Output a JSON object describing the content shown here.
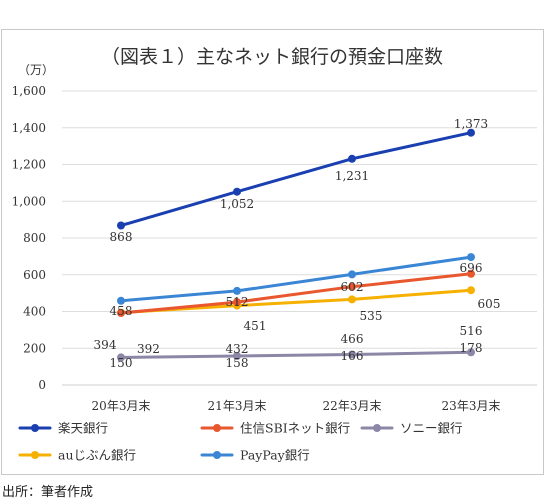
{
  "source": "出所：筆者作成",
  "chart_data": {
    "type": "line",
    "title": "（図表１）主なネット銀行の預金口座数",
    "unit": "（万）",
    "categories": [
      "20年3月末",
      "21年3月末",
      "22年3月末",
      "23年3月末"
    ],
    "ylim": [
      0,
      1600
    ],
    "yticks": [
      "0",
      "200",
      "400",
      "600",
      "800",
      "1,000",
      "1,200",
      "1,400",
      "1,600"
    ],
    "grid": true,
    "legend_position": "bottom",
    "series": [
      {
        "name": "楽天銀行",
        "color": "#1a3fb0",
        "values": [
          868,
          1052,
          1231,
          1373
        ],
        "labels": [
          "868",
          "1,052",
          "1,231",
          "1,373"
        ]
      },
      {
        "name": "住信SBIネット銀行",
        "color": "#e8572e",
        "values": [
          392,
          451,
          535,
          605
        ],
        "labels": [
          "392",
          "451",
          "535",
          "605"
        ]
      },
      {
        "name": "ソニー銀行",
        "color": "#8c87a6",
        "values": [
          150,
          158,
          166,
          178
        ],
        "labels": [
          "150",
          "158",
          "166",
          "178"
        ]
      },
      {
        "name": "auじぶん銀行",
        "color": "#f6b000",
        "values": [
          394,
          432,
          466,
          516
        ],
        "labels": [
          "394",
          "432",
          "466",
          "516"
        ]
      },
      {
        "name": "PayPay銀行",
        "color": "#3a86d4",
        "values": [
          458,
          512,
          602,
          696
        ],
        "labels": [
          "458",
          "512",
          "602",
          "696"
        ]
      }
    ]
  }
}
